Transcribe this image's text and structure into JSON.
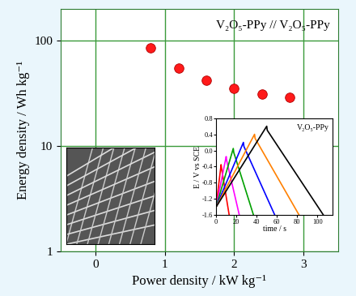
{
  "chart_data": [
    {
      "type": "scatter",
      "xlabel": "Power density / kW kg⁻¹",
      "ylabel": "Energy density / Wh kg⁻¹",
      "x": [
        0.8,
        1.2,
        1.6,
        2.0,
        2.4,
        2.8
      ],
      "values": [
        85,
        55,
        42,
        35,
        31,
        29
      ],
      "color": "#ff1a1a",
      "marker": "o",
      "xlim": [
        -0.5,
        3.5
      ],
      "xticks": [
        0,
        1,
        2,
        3
      ],
      "ylim": [
        1,
        200
      ],
      "yticks": [
        1,
        10,
        100
      ],
      "log": "y",
      "grid": true,
      "annotations": [
        "V₂O₅-PPy // V₂O₅-PPy"
      ]
    },
    {
      "type": "line",
      "xlabel": "time / s",
      "ylabel": "E / V vs SCE",
      "series": [
        {
          "color": "#ff0000",
          "x": [
            0,
            5,
            5.5,
            13
          ],
          "values": [
            -1.4,
            -0.35,
            -0.45,
            -1.6
          ]
        },
        {
          "color": "#ff00ff",
          "x": [
            0,
            10,
            10.5,
            23
          ],
          "values": [
            -1.4,
            -0.15,
            -0.25,
            -1.6
          ]
        },
        {
          "color": "#00a000",
          "x": [
            0,
            17,
            17.5,
            37
          ],
          "values": [
            -1.4,
            0.05,
            -0.05,
            -1.6
          ]
        },
        {
          "color": "#0000ff",
          "x": [
            0,
            27,
            27.5,
            58
          ],
          "values": [
            -1.4,
            0.2,
            0.1,
            -1.6
          ]
        },
        {
          "color": "#ff8000",
          "x": [
            0,
            38,
            38.5,
            82
          ],
          "values": [
            -1.4,
            0.4,
            0.3,
            -1.6
          ]
        },
        {
          "color": "#000000",
          "x": [
            0,
            50,
            50.5,
            106
          ],
          "values": [
            -1.4,
            0.6,
            0.5,
            -1.6
          ]
        }
      ],
      "xlim": [
        0,
        115
      ],
      "xticks": [
        0,
        20,
        40,
        60,
        80,
        100
      ],
      "ylim": [
        -1.6,
        0.8
      ],
      "yticks": [
        -1.6,
        -1.2,
        -0.8,
        -0.4,
        {
          "value": 0,
          "label": "0.0"
        },
        0.4,
        0.8
      ],
      "annotations": [
        "V₂O₅-PPy"
      ]
    }
  ]
}
